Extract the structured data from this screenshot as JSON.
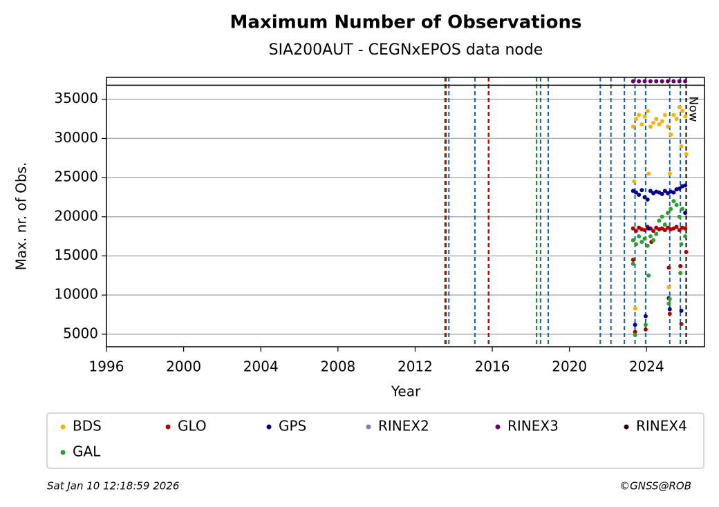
{
  "chart_data": {
    "type": "scatter",
    "title": "Maximum Number of Observations",
    "subtitle": "SIA200AUT - CEGNxEPOS data node",
    "x_label": "Year",
    "y_label": "Max. nr. of Obs.",
    "xlim": [
      1996,
      2027
    ],
    "ylim": [
      3400,
      37800
    ],
    "xticks": [
      1996,
      2000,
      2004,
      2008,
      2012,
      2016,
      2020,
      2024
    ],
    "yticks": [
      5000,
      10000,
      15000,
      20000,
      25000,
      30000,
      35000
    ],
    "grid": true,
    "hline": 36800,
    "events": [
      {
        "x": 2013.55,
        "color": "#008000"
      },
      {
        "x": 2013.6,
        "color": "#cc0000"
      },
      {
        "x": 2013.75,
        "color": "#1060b0"
      },
      {
        "x": 2015.1,
        "color": "#1060b0"
      },
      {
        "x": 2015.8,
        "color": "#008000"
      },
      {
        "x": 2015.82,
        "color": "#cc0000"
      },
      {
        "x": 2018.3,
        "color": "#008000"
      },
      {
        "x": 2018.5,
        "color": "#1060b0"
      },
      {
        "x": 2018.9,
        "color": "#1060b0"
      },
      {
        "x": 2021.6,
        "color": "#1060b0"
      },
      {
        "x": 2022.15,
        "color": "#1060b0"
      },
      {
        "x": 2022.85,
        "color": "#1060b0"
      },
      {
        "x": 2023.4,
        "color": "#1060b0"
      },
      {
        "x": 2023.95,
        "color": "#1060b0"
      },
      {
        "x": 2025.2,
        "color": "#1060b0"
      },
      {
        "x": 2025.75,
        "color": "#1060b0"
      }
    ],
    "now": {
      "x": 2026.05,
      "label": "Now"
    },
    "series": [
      {
        "name": "BDS",
        "color": "#ffb000",
        "x": [
          2023.3,
          2023.45,
          2023.6,
          2023.75,
          2023.9,
          2024.05,
          2024.2,
          2024.35,
          2024.5,
          2024.65,
          2024.8,
          2024.95,
          2025.1,
          2025.25,
          2025.4,
          2025.55,
          2025.7,
          2025.85,
          2026.0,
          2023.35,
          2023.4,
          2024.1,
          2025.15,
          2025.2,
          2025.8,
          2026.05
        ],
        "values": [
          31500,
          32500,
          33000,
          31800,
          32800,
          33500,
          31500,
          32000,
          32500,
          31800,
          32200,
          33000,
          31500,
          30500,
          33000,
          32500,
          34000,
          33500,
          32800,
          24500,
          8300,
          25500,
          11000,
          25500,
          29000,
          28000
        ]
      },
      {
        "name": "GLO",
        "color": "#b00000",
        "x": [
          2023.3,
          2023.45,
          2023.6,
          2023.75,
          2023.9,
          2024.05,
          2024.2,
          2024.35,
          2024.5,
          2024.65,
          2024.8,
          2024.95,
          2025.1,
          2025.25,
          2025.4,
          2025.55,
          2025.7,
          2025.85,
          2026.0,
          2023.3,
          2023.4,
          2023.95,
          2024.25,
          2025.15,
          2025.2,
          2025.75,
          2025.8,
          2026.05
        ],
        "values": [
          18500,
          18200,
          18600,
          18400,
          18300,
          18700,
          18500,
          18200,
          18600,
          18400,
          18500,
          18300,
          18600,
          18400,
          18500,
          18700,
          18300,
          18600,
          18500,
          14500,
          5300,
          5600,
          16800,
          13500,
          7600,
          13700,
          6300,
          15500
        ]
      },
      {
        "name": "GPS",
        "color": "#00008b",
        "x": [
          2023.3,
          2023.45,
          2023.6,
          2023.75,
          2023.9,
          2024.05,
          2024.2,
          2024.35,
          2024.5,
          2024.65,
          2024.8,
          2024.95,
          2025.1,
          2025.25,
          2025.4,
          2025.55,
          2025.7,
          2025.85,
          2026.0,
          2023.4,
          2023.95,
          2024.1,
          2025.15,
          2025.2,
          2025.8,
          2026.0
        ],
        "values": [
          23300,
          23100,
          22800,
          23400,
          22500,
          22200,
          23300,
          23000,
          23200,
          23100,
          22900,
          23300,
          23000,
          23200,
          23100,
          23500,
          23600,
          23900,
          24000,
          6200,
          7300,
          18500,
          9600,
          8200,
          8000,
          20500
        ]
      },
      {
        "name": "RINEX2",
        "color": "#8078c0",
        "x": [],
        "values": []
      },
      {
        "name": "RINEX3",
        "color": "#660066",
        "x": [
          2023.3,
          2023.6,
          2023.9,
          2024.2,
          2024.5,
          2024.8,
          2025.1,
          2025.4,
          2025.7,
          2026.0
        ],
        "values": [
          37300,
          37300,
          37300,
          37300,
          37300,
          37300,
          37300,
          37300,
          37300,
          37300
        ]
      },
      {
        "name": "RINEX4",
        "color": "#200015",
        "x": [],
        "values": []
      },
      {
        "name": "GAL",
        "color": "#2ca02c",
        "x": [
          2023.3,
          2023.45,
          2023.6,
          2023.75,
          2023.9,
          2024.05,
          2024.2,
          2024.35,
          2024.5,
          2024.65,
          2024.8,
          2024.95,
          2025.1,
          2025.25,
          2025.4,
          2025.55,
          2025.7,
          2025.85,
          2026.0,
          2023.3,
          2023.4,
          2023.95,
          2024.1,
          2025.15,
          2025.2,
          2025.75,
          2025.8
        ],
        "values": [
          17000,
          16500,
          17500,
          16800,
          17200,
          16300,
          17500,
          17000,
          17800,
          19500,
          20000,
          19000,
          20500,
          21000,
          22000,
          21500,
          20000,
          21000,
          17500,
          14000,
          4900,
          6200,
          12500,
          8900,
          9500,
          12800,
          16500
        ]
      }
    ],
    "footer_left": "Sat Jan 10 12:18:59 2026",
    "footer_right": "©GNSS@ROB"
  }
}
